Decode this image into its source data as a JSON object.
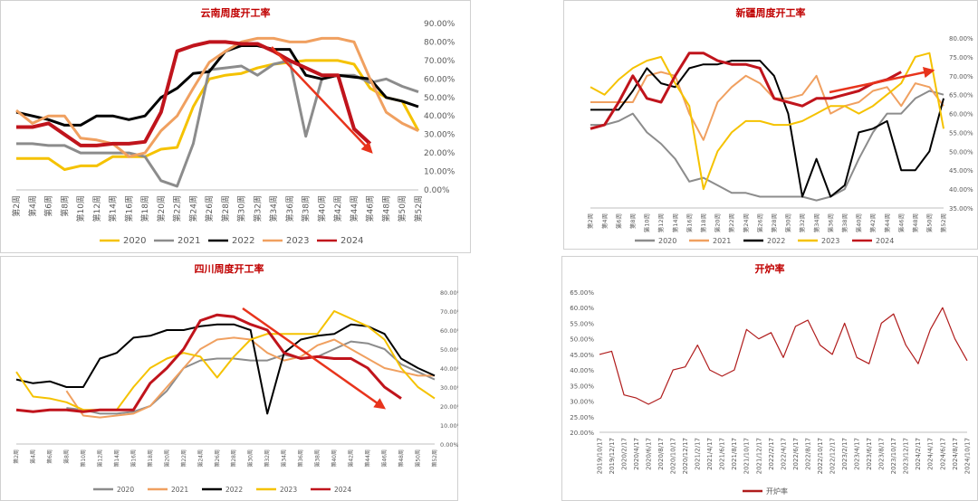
{
  "chart_data": [
    {
      "type": "line",
      "title": "云南周度开工率",
      "categories": [
        "第2周",
        "第4周",
        "第6周",
        "第8周",
        "第10周",
        "第12周",
        "第14周",
        "第16周",
        "第18周",
        "第20周",
        "第22周",
        "第24周",
        "第26周",
        "第28周",
        "第30周",
        "第32周",
        "第34周",
        "第36周",
        "第38周",
        "第40周",
        "第42周",
        "第44周",
        "第46周",
        "第48周",
        "第50周",
        "第52周"
      ],
      "ylim": [
        0,
        90
      ],
      "yticks": [
        {
          "value": 0,
          "label": "0.00%"
        },
        {
          "value": 10,
          "label": "10.00%"
        },
        {
          "value": 20,
          "label": "20.00%"
        },
        {
          "value": 30,
          "label": "30.00%"
        },
        {
          "value": 40,
          "label": "40.00%"
        },
        {
          "value": 50,
          "label": "50.00%"
        },
        {
          "value": 60,
          "label": "60.00%"
        },
        {
          "value": 70,
          "label": "70.00%"
        },
        {
          "value": 80,
          "label": "80.00%"
        },
        {
          "value": 90,
          "label": "90.00%"
        }
      ],
      "series": [
        {
          "name": "2020",
          "color": "#f5c200",
          "values": [
            17,
            17,
            17,
            11,
            13,
            13,
            18,
            18,
            18,
            22,
            23,
            45,
            60,
            62,
            63,
            66,
            68,
            69,
            70,
            70,
            70,
            68,
            55,
            50,
            48,
            32
          ]
        },
        {
          "name": "2021",
          "color": "#8c8c8c",
          "values": [
            25,
            25,
            24,
            24,
            20,
            20,
            20,
            20,
            18,
            5,
            2,
            25,
            65,
            66,
            67,
            62,
            68,
            70,
            29,
            60,
            62,
            62,
            58,
            60,
            56,
            53
          ]
        },
        {
          "name": "2022",
          "color": "#000000",
          "values": [
            42,
            40,
            38,
            35,
            35,
            40,
            40,
            38,
            40,
            50,
            55,
            63,
            64,
            75,
            78,
            78,
            76,
            76,
            62,
            60,
            62,
            61,
            60,
            50,
            48,
            45
          ]
        },
        {
          "name": "2023",
          "color": "#f0a060",
          "values": [
            43,
            36,
            40,
            40,
            28,
            27,
            25,
            18,
            20,
            32,
            40,
            55,
            69,
            75,
            80,
            82,
            82,
            80,
            80,
            82,
            82,
            80,
            60,
            42,
            36,
            32
          ]
        },
        {
          "name": "2024",
          "color": "#c0141c",
          "values": [
            34,
            34,
            36,
            30,
            24,
            24,
            25,
            25,
            26,
            42,
            75,
            78,
            80,
            80,
            79,
            79,
            75,
            70,
            66,
            62,
            62,
            33,
            25,
            null,
            null,
            null
          ]
        }
      ]
    },
    {
      "type": "line",
      "title": "新疆周度开工率",
      "categories": [
        "第2周",
        "第4周",
        "第6周",
        "第8周",
        "第10周",
        "第12周",
        "第14周",
        "第16周",
        "第18周",
        "第20周",
        "第22周",
        "第24周",
        "第26周",
        "第28周",
        "第30周",
        "第32周",
        "第34周",
        "第36周",
        "第38周",
        "第40周",
        "第42周",
        "第44周",
        "第46周",
        "第48周",
        "第50周",
        "第52周"
      ],
      "ylim": [
        35,
        80
      ],
      "yticks": [
        {
          "value": 35,
          "label": "35.00%"
        },
        {
          "value": 40,
          "label": "40.00%"
        },
        {
          "value": 45,
          "label": "45.00%"
        },
        {
          "value": 50,
          "label": "50.00%"
        },
        {
          "value": 55,
          "label": "55.00%"
        },
        {
          "value": 60,
          "label": "60.00%"
        },
        {
          "value": 65,
          "label": "65.00%"
        },
        {
          "value": 70,
          "label": "70.00%"
        },
        {
          "value": 75,
          "label": "75.00%"
        },
        {
          "value": 80,
          "label": "80.00%"
        }
      ],
      "series": [
        {
          "name": "2020",
          "color": "#8c8c8c",
          "values": [
            57,
            57,
            58,
            60,
            55,
            52,
            48,
            42,
            43,
            41,
            39,
            39,
            38,
            38,
            38,
            38,
            37,
            38,
            40,
            48,
            55,
            60,
            60,
            64,
            66,
            65
          ]
        },
        {
          "name": "2021",
          "color": "#f0a060",
          "values": [
            63,
            63,
            63,
            63,
            70,
            71,
            70,
            60,
            53,
            63,
            67,
            70,
            68,
            64,
            64,
            65,
            70,
            60,
            62,
            63,
            66,
            67,
            62,
            68,
            67,
            62
          ]
        },
        {
          "name": "2022",
          "color": "#000000",
          "values": [
            61,
            61,
            61,
            66,
            72,
            68,
            67,
            72,
            73,
            73,
            74,
            74,
            74,
            70,
            60,
            38,
            48,
            38,
            41,
            55,
            56,
            58,
            45,
            45,
            50,
            64
          ]
        },
        {
          "name": "2023",
          "color": "#f5c200",
          "values": [
            67,
            65,
            69,
            72,
            74,
            75,
            68,
            62,
            40,
            50,
            55,
            58,
            58,
            57,
            57,
            58,
            60,
            62,
            62,
            60,
            62,
            65,
            68,
            75,
            76,
            56
          ]
        },
        {
          "name": "2024",
          "color": "#c0141c",
          "values": [
            56,
            57,
            63,
            70,
            64,
            63,
            70,
            76,
            76,
            74,
            73,
            73,
            72,
            64,
            63,
            62,
            64,
            64,
            65,
            66,
            68,
            69,
            71,
            null,
            null,
            null
          ]
        }
      ]
    },
    {
      "type": "line",
      "title": "四川周度开工率",
      "categories": [
        "第2周",
        "第4周",
        "第6周",
        "第8周",
        "第10周",
        "第12周",
        "第14周",
        "第16周",
        "第18周",
        "第20周",
        "第22周",
        "第24周",
        "第26周",
        "第28周",
        "第30周",
        "第32周",
        "第34周",
        "第36周",
        "第38周",
        "第40周",
        "第42周",
        "第44周",
        "第46周",
        "第48周",
        "第50周",
        "第52周"
      ],
      "ylim": [
        0,
        80
      ],
      "yticks": [
        {
          "value": 0,
          "label": "0.00%"
        },
        {
          "value": 10,
          "label": "10.00%"
        },
        {
          "value": 20,
          "label": "20.00%"
        },
        {
          "value": 30,
          "label": "30.00%"
        },
        {
          "value": 40,
          "label": "40.00%"
        },
        {
          "value": 50,
          "label": "50.00%"
        },
        {
          "value": 60,
          "label": "60.00%"
        },
        {
          "value": 70,
          "label": "70.00%"
        },
        {
          "value": 80,
          "label": "80.00%"
        }
      ],
      "series": [
        {
          "name": "2020",
          "color": "#8c8c8c",
          "values": [
            null,
            null,
            null,
            19,
            18,
            16,
            16,
            17,
            20,
            28,
            40,
            44,
            45,
            45,
            44,
            44,
            47,
            45,
            46,
            50,
            54,
            53,
            50,
            42,
            38,
            34
          ]
        },
        {
          "name": "2021",
          "color": "#f0a060",
          "values": [
            null,
            null,
            null,
            28,
            15,
            14,
            15,
            16,
            20,
            30,
            40,
            50,
            55,
            56,
            55,
            48,
            44,
            46,
            52,
            55,
            50,
            45,
            40,
            38,
            36,
            36
          ]
        },
        {
          "name": "2022",
          "color": "#000000",
          "values": [
            34,
            32,
            33,
            30,
            30,
            45,
            48,
            56,
            57,
            60,
            60,
            62,
            63,
            63,
            60,
            16,
            48,
            55,
            57,
            58,
            63,
            62,
            58,
            45,
            40,
            36
          ]
        },
        {
          "name": "2023",
          "color": "#f5c200",
          "values": [
            38,
            25,
            24,
            22,
            18,
            18,
            18,
            30,
            40,
            45,
            48,
            46,
            35,
            46,
            55,
            58,
            58,
            58,
            58,
            70,
            66,
            62,
            55,
            40,
            30,
            24
          ]
        },
        {
          "name": "2024",
          "color": "#c0141c",
          "values": [
            18,
            17,
            18,
            18,
            17,
            18,
            18,
            18,
            32,
            40,
            50,
            65,
            68,
            67,
            63,
            60,
            48,
            45,
            46,
            45,
            45,
            40,
            30,
            24,
            null,
            null
          ]
        }
      ]
    },
    {
      "type": "line",
      "title": "开炉率",
      "categories": [
        "2019/10/17",
        "2019/12/17",
        "2020/2/17",
        "2020/4/17",
        "2020/6/17",
        "2020/8/17",
        "2020/10/17",
        "2020/12/17",
        "2021/2/17",
        "2021/4/17",
        "2021/6/17",
        "2021/8/17",
        "2021/10/17",
        "2021/12/17",
        "2022/2/17",
        "2022/4/17",
        "2022/6/17",
        "2022/8/17",
        "2022/10/17",
        "2022/12/17",
        "2023/2/17",
        "2023/4/17",
        "2023/6/17",
        "2023/8/17",
        "2023/10/17",
        "2023/12/17",
        "2024/2/17",
        "2024/4/17",
        "2024/6/17",
        "2024/8/17",
        "2024/10/17"
      ],
      "ylim": [
        20,
        65
      ],
      "yticks": [
        {
          "value": 20,
          "label": "20.00%"
        },
        {
          "value": 25,
          "label": "25.00%"
        },
        {
          "value": 30,
          "label": "30.00%"
        },
        {
          "value": 35,
          "label": "35.00%"
        },
        {
          "value": 40,
          "label": "40.00%"
        },
        {
          "value": 45,
          "label": "45.00%"
        },
        {
          "value": 50,
          "label": "50.00%"
        },
        {
          "value": 55,
          "label": "55.00%"
        },
        {
          "value": 60,
          "label": "60.00%"
        },
        {
          "value": 65,
          "label": "65.00%"
        }
      ],
      "series": [
        {
          "name": "开炉率",
          "color": "#b01c1c",
          "values": [
            45,
            46,
            32,
            31,
            29,
            31,
            40,
            41,
            48,
            40,
            38,
            40,
            53,
            50,
            52,
            44,
            54,
            56,
            48,
            45,
            55,
            44,
            42,
            55,
            58,
            48,
            42,
            53,
            60,
            50,
            43
          ]
        }
      ]
    }
  ]
}
